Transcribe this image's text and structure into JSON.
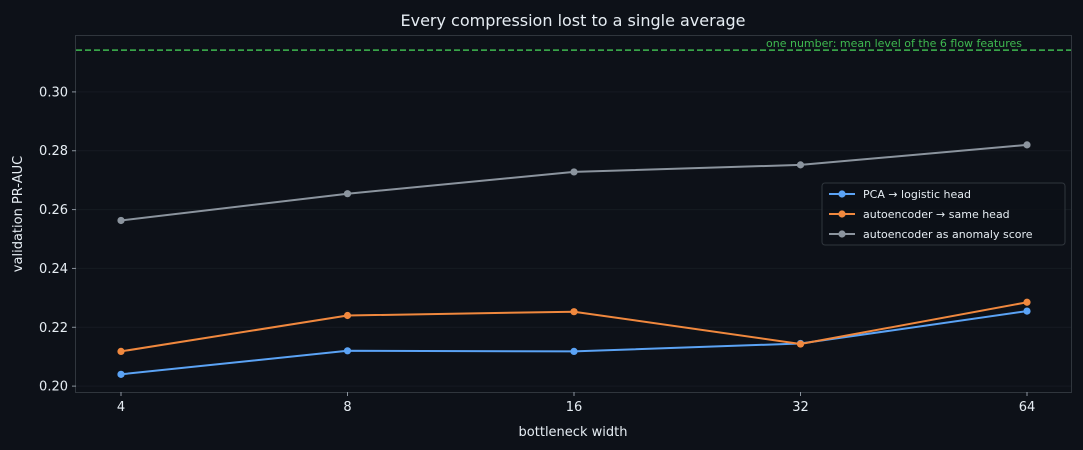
{
  "chart_data": {
    "type": "line",
    "title": "Every compression lost to a single average",
    "xlabel": "bottleneck width",
    "ylabel": "validation PR-AUC",
    "x_scale": "log2",
    "categories": [
      "4",
      "8",
      "16",
      "32",
      "64"
    ],
    "x": [
      4,
      8,
      16,
      32,
      64
    ],
    "ylim": [
      0.198,
      0.319
    ],
    "yticks": [
      "0.20",
      "0.22",
      "0.24",
      "0.26",
      "0.28",
      "0.30"
    ],
    "grid": true,
    "legend_position": "right",
    "series": [
      {
        "name": "PCA → logistic head",
        "color": "#5ba3f5",
        "values": [
          0.204,
          0.212,
          0.2118,
          0.2145,
          0.2255
        ]
      },
      {
        "name": "autoencoder → same head",
        "color": "#f0883e",
        "values": [
          0.2118,
          0.224,
          0.2253,
          0.2143,
          0.2285
        ]
      },
      {
        "name": "autoencoder as anomaly score",
        "color": "#8b949e",
        "values": [
          0.2563,
          0.2654,
          0.2728,
          0.2752,
          0.282
        ]
      }
    ],
    "reference_line": {
      "label": "one number: mean level of the 6 flow features",
      "value": 0.3142,
      "color": "#3fb950"
    }
  }
}
